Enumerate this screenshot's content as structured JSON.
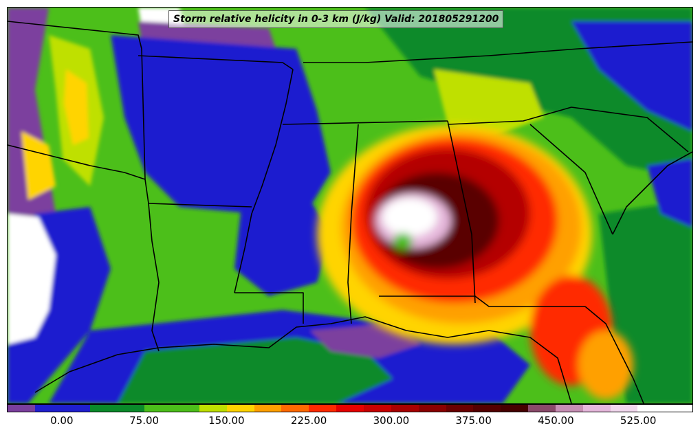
{
  "title": "Storm relative helicity in 0-3 km (J/kg) Valid: 201805291200",
  "colorbar": {
    "colors": [
      "#7b3f9e",
      "#1f1fcf",
      "#1f1fcf",
      "#0a8a2a",
      "#0a8a2a",
      "#4cbf1a",
      "#4cbf1a",
      "#bfe000",
      "#ffd400",
      "#ffa000",
      "#ff6a00",
      "#ff2a00",
      "#e60000",
      "#c80000",
      "#a80000",
      "#8a0000",
      "#6a0000",
      "#540000",
      "#460000",
      "#8a4a6a",
      "#c78fb4",
      "#e6b8dc",
      "#f2d8ee",
      "#ffffff",
      "#ffffff"
    ],
    "ticks": [
      {
        "label": "0.00",
        "frac": 0.08
      },
      {
        "label": "75.00",
        "frac": 0.2
      },
      {
        "label": "150.00",
        "frac": 0.32
      },
      {
        "label": "225.00",
        "frac": 0.44
      },
      {
        "label": "300.00",
        "frac": 0.56
      },
      {
        "label": "375.00",
        "frac": 0.68
      },
      {
        "label": "450.00",
        "frac": 0.8
      },
      {
        "label": "525.00",
        "frac": 0.92
      }
    ]
  },
  "palette": {
    "purple": "#7b3f9e",
    "blue": "#1f1fcf",
    "darkgreen": "#0a8a2a",
    "green": "#4cbf1a",
    "lime": "#bfe000",
    "yellow": "#ffd400",
    "orange": "#ffa000",
    "red": "#ff2a00",
    "darkred": "#b40000",
    "maroon": "#5a0000",
    "pink": "#e6b8dc",
    "white": "#ffffff"
  }
}
